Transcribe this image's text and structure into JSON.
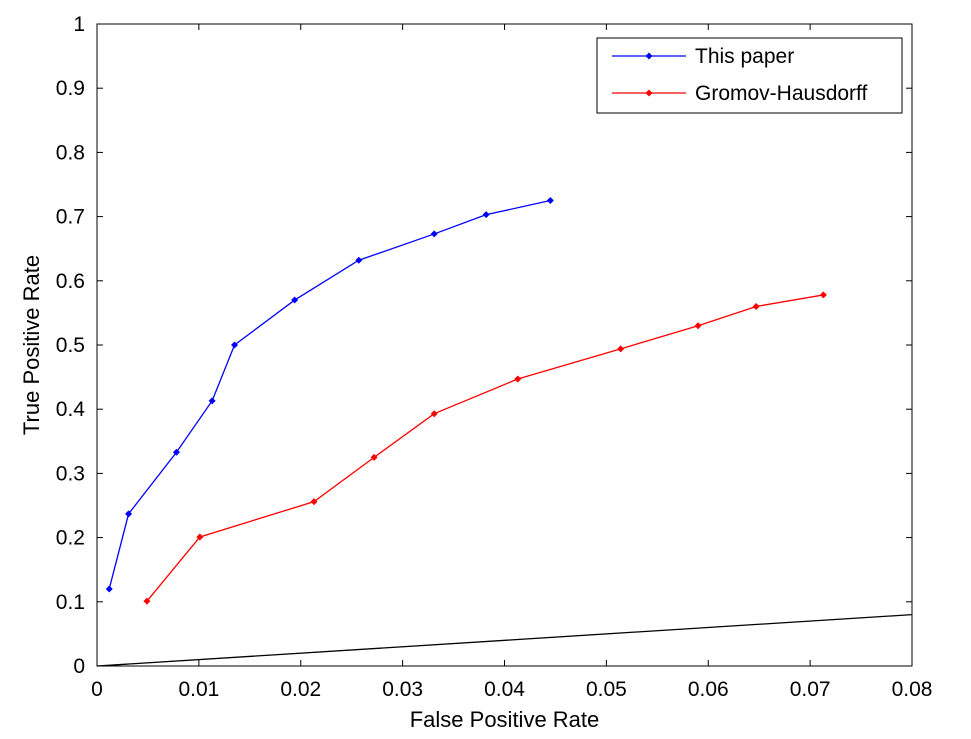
{
  "chart_data": {
    "type": "line",
    "xlabel": "False Positive Rate",
    "ylabel": "True Positive Rate",
    "xlim": [
      0,
      0.08
    ],
    "ylim": [
      0,
      1
    ],
    "grid": false,
    "legend_position": "top-right",
    "xticks": [
      0,
      0.01,
      0.02,
      0.03,
      0.04,
      0.05,
      0.06,
      0.07,
      0.08
    ],
    "xtick_labels": [
      "0",
      "0.01",
      "0.02",
      "0.03",
      "0.04",
      "0.05",
      "0.06",
      "0.07",
      "0.08"
    ],
    "yticks": [
      0,
      0.1,
      0.2,
      0.3,
      0.4,
      0.5,
      0.6,
      0.7,
      0.8,
      0.9,
      1
    ],
    "ytick_labels": [
      "0",
      "0.1",
      "0.2",
      "0.3",
      "0.4",
      "0.5",
      "0.6",
      "0.7",
      "0.8",
      "0.9",
      "1"
    ],
    "series": [
      {
        "name": "This paper",
        "color": "#0000ff",
        "marker": "diamond",
        "x": [
          0.0012,
          0.0031,
          0.0078,
          0.0113,
          0.0135,
          0.0194,
          0.0257,
          0.0331,
          0.0382,
          0.0445
        ],
        "y": [
          0.12,
          0.237,
          0.333,
          0.413,
          0.5,
          0.57,
          0.632,
          0.673,
          0.703,
          0.725
        ]
      },
      {
        "name": "Gromov-Hausdorff",
        "color": "#ff0000",
        "marker": "diamond",
        "x": [
          0.0049,
          0.0101,
          0.0213,
          0.0272,
          0.0331,
          0.0413,
          0.0514,
          0.059,
          0.0647,
          0.0713
        ],
        "y": [
          0.101,
          0.201,
          0.256,
          0.325,
          0.393,
          0.447,
          0.494,
          0.53,
          0.56,
          0.578
        ]
      },
      {
        "color": "#000000",
        "marker": "none",
        "x": [
          0,
          0.08
        ],
        "y": [
          0,
          0.08
        ]
      }
    ]
  }
}
